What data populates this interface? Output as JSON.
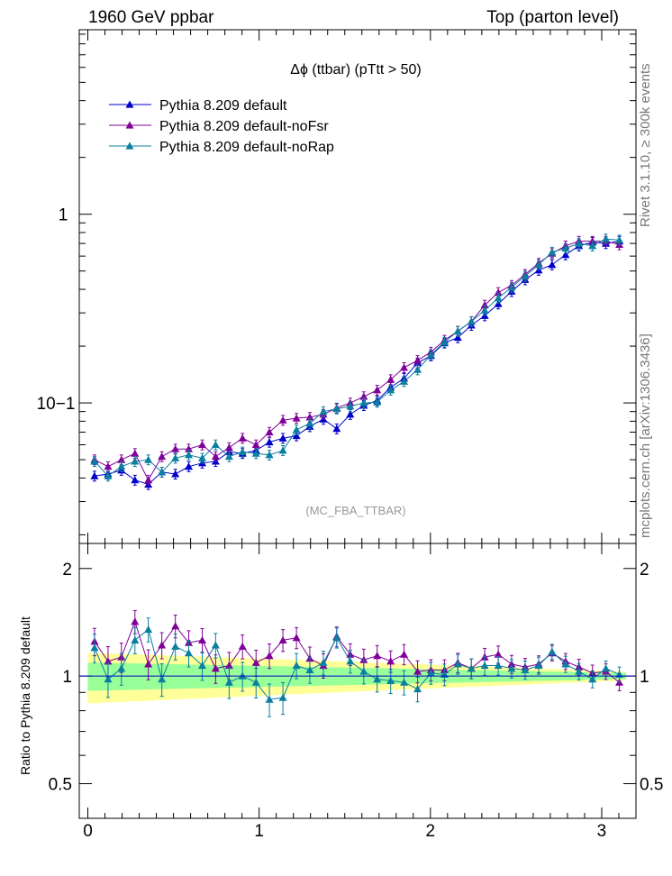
{
  "header": {
    "left": "1960 GeV ppbar",
    "right": "Top (parton level)"
  },
  "side_labels": {
    "rivet": "Rivet 3.1.10, ≥ 300k events",
    "mcplots": "mcplots.cern.ch [arXiv:1306.3436]"
  },
  "chart_data": {
    "type": "line",
    "title": "Δϕ (ttbar) (pTtt > 50)",
    "watermark": "(MC_FBA_TTBAR)",
    "xlabel": "",
    "ylabel": "",
    "ratio_ylabel": "Ratio to Pythia 8.209 default",
    "xlim": [
      -0.05,
      3.2
    ],
    "ylim_log": [
      0.018,
      9.5
    ],
    "ratio_ylim": [
      0.4,
      2.35
    ],
    "yscale": "log",
    "legend_position": "top-left",
    "x_ticks": [
      "0",
      "1",
      "2",
      "3"
    ],
    "y_ticks": [
      "10−1",
      "1"
    ],
    "ratio_ticks": [
      "0.5",
      "1",
      "2"
    ],
    "x": [
      0.039,
      0.118,
      0.196,
      0.275,
      0.353,
      0.432,
      0.511,
      0.589,
      0.668,
      0.746,
      0.825,
      0.903,
      0.982,
      1.06,
      1.139,
      1.218,
      1.296,
      1.375,
      1.453,
      1.532,
      1.611,
      1.689,
      1.768,
      1.846,
      1.925,
      2.003,
      2.082,
      2.16,
      2.239,
      2.317,
      2.396,
      2.474,
      2.553,
      2.632,
      2.71,
      2.789,
      2.867,
      2.946,
      3.024,
      3.103
    ],
    "series": [
      {
        "name": "Pythia 8.209 default",
        "color": "#0000cc",
        "values": [
          0.041,
          0.042,
          0.044,
          0.039,
          0.037,
          0.043,
          0.042,
          0.046,
          0.048,
          0.049,
          0.055,
          0.054,
          0.056,
          0.062,
          0.065,
          0.067,
          0.075,
          0.082,
          0.073,
          0.087,
          0.097,
          0.103,
          0.121,
          0.135,
          0.163,
          0.178,
          0.208,
          0.222,
          0.258,
          0.29,
          0.335,
          0.39,
          0.45,
          0.505,
          0.54,
          0.61,
          0.68,
          0.71,
          0.7,
          0.72
        ]
      },
      {
        "name": "Pythia 8.209 default-noFsr",
        "color": "#800099",
        "values": [
          0.05,
          0.046,
          0.05,
          0.054,
          0.039,
          0.052,
          0.057,
          0.057,
          0.06,
          0.052,
          0.058,
          0.065,
          0.06,
          0.07,
          0.081,
          0.083,
          0.084,
          0.087,
          0.094,
          0.1,
          0.108,
          0.117,
          0.133,
          0.154,
          0.168,
          0.186,
          0.215,
          0.24,
          0.27,
          0.33,
          0.385,
          0.42,
          0.48,
          0.55,
          0.62,
          0.68,
          0.72,
          0.72,
          0.72,
          0.69
        ]
      },
      {
        "name": "Pythia 8.209 default-noRap",
        "color": "#0a7fa0",
        "values": [
          0.049,
          0.041,
          0.046,
          0.049,
          0.05,
          0.043,
          0.051,
          0.053,
          0.051,
          0.06,
          0.052,
          0.055,
          0.054,
          0.053,
          0.056,
          0.072,
          0.078,
          0.09,
          0.093,
          0.096,
          0.1,
          0.101,
          0.117,
          0.13,
          0.15,
          0.18,
          0.21,
          0.24,
          0.27,
          0.31,
          0.36,
          0.41,
          0.47,
          0.54,
          0.63,
          0.66,
          0.7,
          0.68,
          0.74,
          0.73
        ]
      }
    ],
    "ratio_series": [
      {
        "name": "Pythia 8.209 default-noFsr",
        "color": "#800099",
        "values": [
          1.25,
          1.1,
          1.13,
          1.42,
          1.08,
          1.22,
          1.38,
          1.24,
          1.26,
          1.05,
          1.07,
          1.21,
          1.09,
          1.14,
          1.26,
          1.28,
          1.12,
          1.07,
          1.29,
          1.15,
          1.11,
          1.14,
          1.1,
          1.15,
          1.03,
          1.04,
          1.04,
          1.09,
          1.05,
          1.13,
          1.15,
          1.08,
          1.06,
          1.08,
          1.16,
          1.1,
          1.06,
          1.02,
          1.03,
          0.96
        ]
      },
      {
        "name": "Pythia 8.209 default-noRap",
        "color": "#0a7fa0",
        "values": [
          1.2,
          0.98,
          1.05,
          1.26,
          1.35,
          0.98,
          1.21,
          1.16,
          1.07,
          1.22,
          0.96,
          1.0,
          0.96,
          0.86,
          0.87,
          1.07,
          1.04,
          1.09,
          1.28,
          1.1,
          1.03,
          0.98,
          0.97,
          0.96,
          0.92,
          1.02,
          1.01,
          1.08,
          1.05,
          1.07,
          1.07,
          1.05,
          1.04,
          1.07,
          1.17,
          1.08,
          1.03,
          0.98,
          1.05,
          1.01
        ]
      }
    ],
    "bands": {
      "yellow_color": "#ffff99",
      "green_color": "#99ff99",
      "yellow_half_width_start": 0.16,
      "yellow_half_width_end": 0.03,
      "green_half_width_start": 0.09,
      "green_half_width_end": 0.02
    },
    "axis_color": "#000000"
  }
}
